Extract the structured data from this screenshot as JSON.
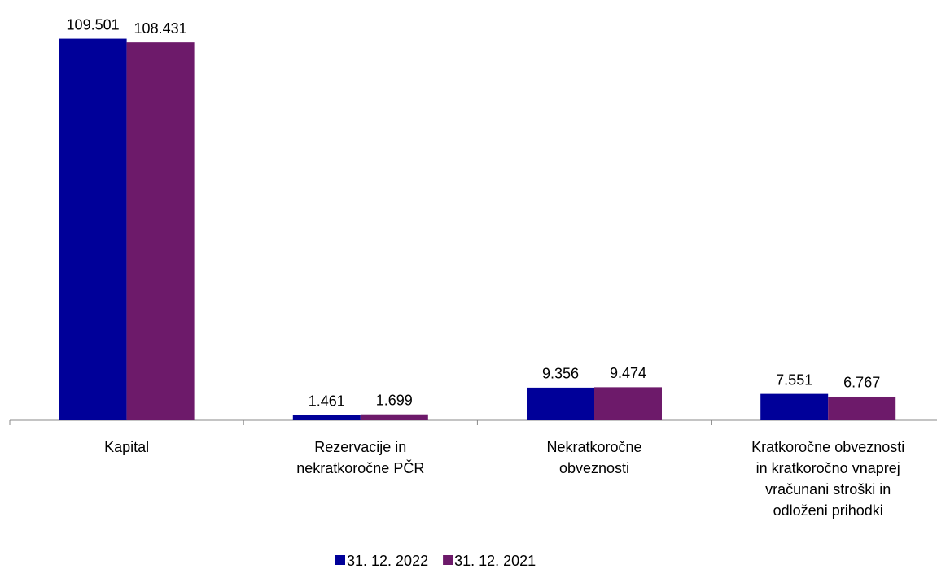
{
  "chart_data": {
    "type": "bar",
    "categories": [
      "Kapital",
      "Rezervacije in\nnekratkoročne PČR",
      "Nekratkoročne\nobveznosti",
      "Kratkoročne obveznosti\nin kratkoročno vnaprej\nvračunani stroški in\nodloženi prihodki"
    ],
    "series": [
      {
        "name": "31. 12. 2022",
        "color": "#000099",
        "values": [
          109.501,
          1.461,
          9.356,
          7.551
        ]
      },
      {
        "name": "31. 12. 2021",
        "color": "#6d1a6a",
        "values": [
          108.431,
          1.699,
          9.474,
          6.767
        ]
      }
    ],
    "ylim": [
      0,
      115
    ],
    "legend": "bottom"
  }
}
